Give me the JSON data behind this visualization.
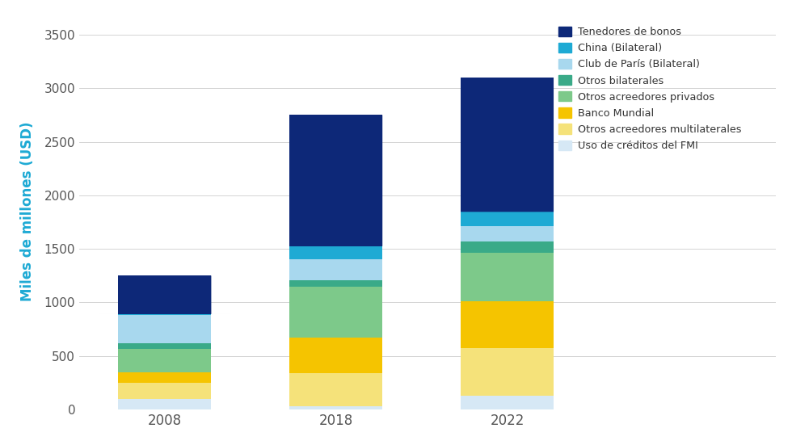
{
  "years": [
    "2008",
    "2018",
    "2022"
  ],
  "categories": [
    "Uso de créditos del FMI",
    "Otros acreedores multilaterales",
    "Banco Mundial",
    "Otros acreedores privados",
    "Otros bilaterales",
    "Club de París (Bilateral)",
    "China (Bilateral)",
    "Tenedores de bonos"
  ],
  "colors": [
    "#d6e8f5",
    "#f5e27a",
    "#f5c400",
    "#7dc98a",
    "#3aaa88",
    "#a8d8ee",
    "#1eaad4",
    "#0d2878"
  ],
  "legend_order": [
    "Tenedores de bonos",
    "China (Bilateral)",
    "Club de París (Bilateral)",
    "Otros bilaterales",
    "Otros acreedores privados",
    "Banco Mundial",
    "Otros acreedores multilaterales",
    "Uso de créditos del FMI"
  ],
  "legend_colors": [
    "#0d2878",
    "#1eaad4",
    "#a8d8ee",
    "#3aaa88",
    "#7dc98a",
    "#f5c400",
    "#f5e27a",
    "#d6e8f5"
  ],
  "values": {
    "2008": [
      95,
      155,
      100,
      215,
      50,
      265,
      10,
      360
    ],
    "2018": [
      30,
      310,
      330,
      480,
      55,
      200,
      120,
      1225
    ],
    "2022": [
      130,
      440,
      440,
      455,
      100,
      150,
      130,
      1255
    ]
  },
  "ylabel": "Miles de millones (USD)",
  "ylim": [
    0,
    3700
  ],
  "yticks": [
    0,
    500,
    1000,
    1500,
    2000,
    2500,
    3000,
    3500
  ],
  "background_color": "#ffffff",
  "bar_width": 0.38,
  "grid_color": "#cccccc",
  "tick_color": "#555555",
  "label_color": "#1eaad4"
}
